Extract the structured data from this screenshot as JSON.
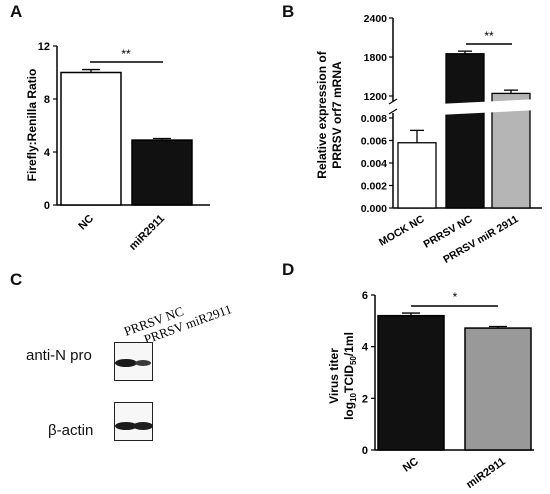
{
  "panels": {
    "a": "A",
    "b": "B",
    "c": "C",
    "d": "D"
  },
  "chart_data": [
    {
      "panel": "A",
      "type": "bar",
      "categories": [
        "NC",
        "miR2911"
      ],
      "values": [
        10.0,
        4.9
      ],
      "errors": [
        0.22,
        0.12
      ],
      "fills": [
        "#ffffff",
        "#111111"
      ],
      "ylabel": "Firefly:Renilla Ratio",
      "ylim": [
        0,
        12
      ],
      "yticks": [
        0,
        4,
        8,
        12
      ],
      "significance": "**",
      "grid": false
    },
    {
      "panel": "B",
      "type": "bar",
      "axis_break": true,
      "categories": [
        "MOCK NC",
        "PRRSV NC",
        "PRRSV miR 2911"
      ],
      "values": [
        0.0058,
        1850,
        1240
      ],
      "errors": [
        0.0011,
        40,
        50
      ],
      "fills": [
        "#ffffff",
        "#111111",
        "#b5b5b5"
      ],
      "ylabel_lines": [
        "Relative expression of",
        "PRRSV orf7 mRNA"
      ],
      "lower_range": [
        0,
        0.008
      ],
      "lower_ticks": [
        "0.000",
        "0.002",
        "0.004",
        "0.006",
        "0.008"
      ],
      "upper_range": [
        1200,
        2400
      ],
      "upper_ticks": [
        "1200",
        "1800",
        "2400"
      ],
      "significance": "**",
      "grid": false
    },
    {
      "panel": "D",
      "type": "bar",
      "categories": [
        "NC",
        "miR2911"
      ],
      "values": [
        5.2,
        4.72
      ],
      "errors": [
        0.1,
        0.06
      ],
      "fills": [
        "#111111",
        "#999999"
      ],
      "ylabel_lines": [
        "Virus titer",
        "log10TCID50/1ml"
      ],
      "ylim": [
        0,
        6
      ],
      "yticks": [
        0,
        2,
        4,
        6
      ],
      "significance": "*",
      "grid": false
    }
  ],
  "blot": {
    "lanes": [
      "PRRSV NC",
      "PRRSV miR2911"
    ],
    "rows": [
      {
        "label": "anti-N pro"
      },
      {
        "label": "β-actin"
      }
    ]
  }
}
